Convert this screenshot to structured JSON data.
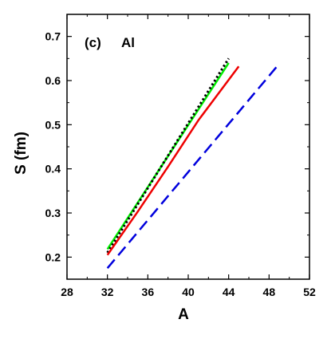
{
  "chart_data": {
    "type": "line",
    "panel_label": "(c)",
    "element_label": "Al",
    "xlabel": "A",
    "ylabel": "S (fm)",
    "xlim": [
      28,
      52
    ],
    "ylim": [
      0.15,
      0.75
    ],
    "xticks": [
      28,
      32,
      36,
      40,
      44,
      48,
      52
    ],
    "yticks": [
      0.2,
      0.3,
      0.4,
      0.5,
      0.6,
      0.7
    ],
    "ytick_labels": [
      "0.2",
      "0.3",
      "0.4",
      "0.5",
      "0.6",
      "0.7"
    ],
    "grid": false,
    "series": [
      {
        "color": "#00ee00",
        "style": "solid",
        "width": 2.5,
        "x": [
          32,
          44
        ],
        "y": [
          0.218,
          0.64
        ]
      },
      {
        "color": "#000000",
        "style": "dotted",
        "width": 3,
        "x": [
          32,
          44
        ],
        "y": [
          0.21,
          0.65
        ]
      },
      {
        "color": "#ee0000",
        "style": "solid",
        "width": 2.5,
        "x": [
          32,
          35,
          38,
          41,
          45
        ],
        "y": [
          0.205,
          0.303,
          0.405,
          0.51,
          0.632
        ]
      },
      {
        "color": "#0000dd",
        "style": "dashed",
        "width": 2.5,
        "x": [
          32,
          49
        ],
        "y": [
          0.175,
          0.638
        ]
      }
    ]
  }
}
